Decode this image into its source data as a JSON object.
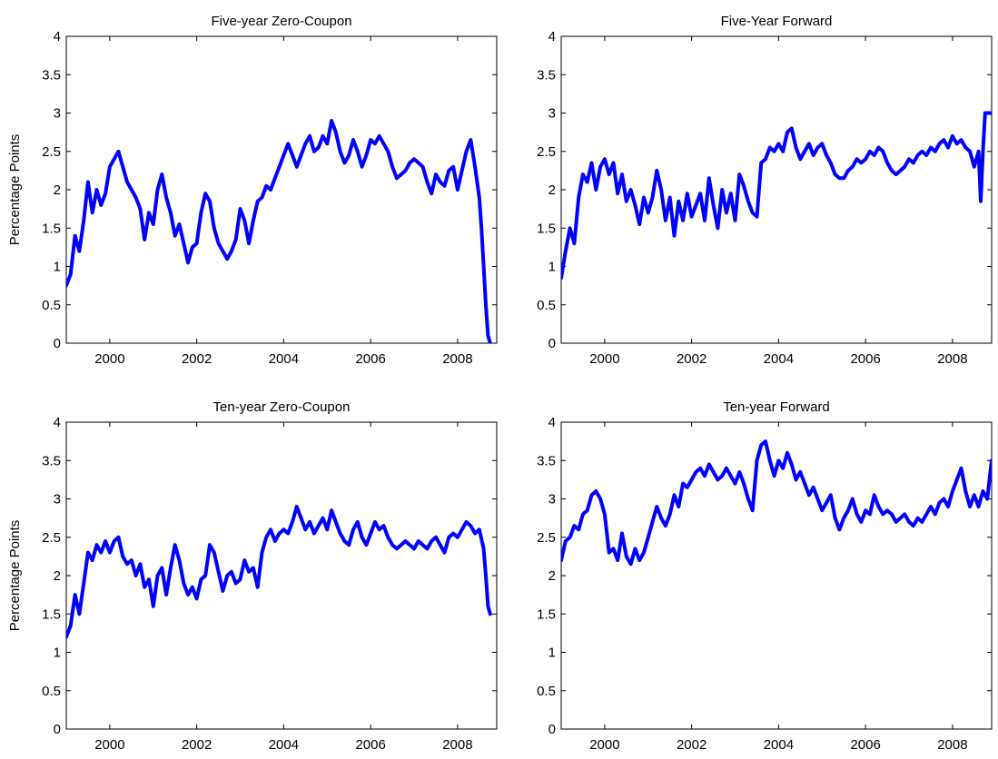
{
  "chart_data": [
    {
      "type": "line",
      "title": "Five-year Zero-Coupon",
      "xlabel": "",
      "ylabel": "Percentage Points",
      "xlim": [
        1999.0,
        2008.9
      ],
      "ylim": [
        0,
        4
      ],
      "xticks": [
        "2000",
        "2002",
        "2004",
        "2006",
        "2008"
      ],
      "yticks": [
        "0",
        "0.5",
        "1",
        "1.5",
        "2",
        "2.5",
        "3",
        "3.5",
        "4"
      ],
      "grid": false,
      "series": [
        {
          "color": "#0000ff",
          "x": [
            1999.0,
            1999.1,
            1999.2,
            1999.3,
            1999.4,
            1999.5,
            1999.6,
            1999.7,
            1999.8,
            1999.9,
            2000.0,
            2000.1,
            2000.2,
            2000.3,
            2000.4,
            2000.5,
            2000.6,
            2000.7,
            2000.8,
            2000.9,
            2001.0,
            2001.1,
            2001.2,
            2001.3,
            2001.4,
            2001.5,
            2001.6,
            2001.7,
            2001.8,
            2001.9,
            2002.0,
            2002.1,
            2002.2,
            2002.3,
            2002.4,
            2002.5,
            2002.6,
            2002.7,
            2002.8,
            2002.9,
            2003.0,
            2003.1,
            2003.2,
            2003.3,
            2003.4,
            2003.5,
            2003.6,
            2003.7,
            2003.8,
            2003.9,
            2004.0,
            2004.1,
            2004.2,
            2004.3,
            2004.4,
            2004.5,
            2004.6,
            2004.7,
            2004.8,
            2004.9,
            2005.0,
            2005.1,
            2005.2,
            2005.3,
            2005.4,
            2005.5,
            2005.6,
            2005.7,
            2005.8,
            2005.9,
            2006.0,
            2006.1,
            2006.2,
            2006.3,
            2006.4,
            2006.5,
            2006.6,
            2006.7,
            2006.8,
            2006.9,
            2007.0,
            2007.1,
            2007.2,
            2007.3,
            2007.4,
            2007.5,
            2007.6,
            2007.7,
            2007.8,
            2007.9,
            2008.0,
            2008.1,
            2008.2,
            2008.3,
            2008.4,
            2008.5,
            2008.55,
            2008.6,
            2008.65,
            2008.7,
            2008.75
          ],
          "y": [
            0.75,
            0.9,
            1.4,
            1.2,
            1.6,
            2.1,
            1.7,
            2.0,
            1.8,
            1.95,
            2.3,
            2.4,
            2.5,
            2.3,
            2.1,
            2.0,
            1.9,
            1.75,
            1.35,
            1.7,
            1.55,
            2.0,
            2.2,
            1.9,
            1.7,
            1.4,
            1.55,
            1.3,
            1.05,
            1.25,
            1.3,
            1.7,
            1.95,
            1.85,
            1.5,
            1.3,
            1.2,
            1.1,
            1.2,
            1.35,
            1.75,
            1.6,
            1.3,
            1.6,
            1.85,
            1.9,
            2.05,
            2.0,
            2.15,
            2.3,
            2.45,
            2.6,
            2.45,
            2.3,
            2.45,
            2.6,
            2.7,
            2.5,
            2.55,
            2.7,
            2.6,
            2.9,
            2.75,
            2.5,
            2.35,
            2.45,
            2.65,
            2.5,
            2.3,
            2.45,
            2.65,
            2.6,
            2.7,
            2.6,
            2.5,
            2.3,
            2.15,
            2.2,
            2.25,
            2.35,
            2.4,
            2.35,
            2.3,
            2.1,
            1.95,
            2.2,
            2.1,
            2.05,
            2.25,
            2.3,
            2.0,
            2.25,
            2.5,
            2.65,
            2.3,
            1.9,
            1.5,
            1.0,
            0.5,
            0.1,
            0.0
          ]
        }
      ]
    },
    {
      "type": "line",
      "title": "Five-Year Forward",
      "xlabel": "",
      "ylabel": "",
      "xlim": [
        1999.0,
        2008.9
      ],
      "ylim": [
        0,
        4
      ],
      "xticks": [
        "2000",
        "2002",
        "2004",
        "2006",
        "2008"
      ],
      "yticks": [
        "0",
        "0.5",
        "1",
        "1.5",
        "2",
        "2.5",
        "3",
        "3.5",
        "4"
      ],
      "grid": false,
      "series": [
        {
          "color": "#0000ff",
          "x": [
            1999.0,
            1999.1,
            1999.2,
            1999.3,
            1999.4,
            1999.5,
            1999.6,
            1999.7,
            1999.8,
            1999.9,
            2000.0,
            2000.1,
            2000.2,
            2000.3,
            2000.4,
            2000.5,
            2000.6,
            2000.7,
            2000.8,
            2000.9,
            2001.0,
            2001.1,
            2001.2,
            2001.3,
            2001.4,
            2001.5,
            2001.6,
            2001.7,
            2001.8,
            2001.9,
            2002.0,
            2002.1,
            2002.2,
            2002.3,
            2002.4,
            2002.5,
            2002.6,
            2002.7,
            2002.8,
            2002.9,
            2003.0,
            2003.1,
            2003.2,
            2003.3,
            2003.4,
            2003.5,
            2003.6,
            2003.7,
            2003.8,
            2003.9,
            2004.0,
            2004.1,
            2004.2,
            2004.3,
            2004.4,
            2004.5,
            2004.6,
            2004.7,
            2004.8,
            2004.9,
            2005.0,
            2005.1,
            2005.2,
            2005.3,
            2005.4,
            2005.5,
            2005.6,
            2005.7,
            2005.8,
            2005.9,
            2006.0,
            2006.1,
            2006.2,
            2006.3,
            2006.4,
            2006.5,
            2006.6,
            2006.7,
            2006.8,
            2006.9,
            2007.0,
            2007.1,
            2007.2,
            2007.3,
            2007.4,
            2007.5,
            2007.6,
            2007.7,
            2007.8,
            2007.9,
            2008.0,
            2008.1,
            2008.2,
            2008.3,
            2008.4,
            2008.5,
            2008.6,
            2008.65,
            2008.7,
            2008.75,
            2008.8,
            2008.85,
            2008.9
          ],
          "y": [
            0.85,
            1.2,
            1.5,
            1.3,
            1.9,
            2.2,
            2.1,
            2.35,
            2.0,
            2.3,
            2.4,
            2.2,
            2.35,
            1.95,
            2.2,
            1.85,
            2.0,
            1.8,
            1.55,
            1.9,
            1.7,
            1.9,
            2.25,
            2.0,
            1.6,
            1.9,
            1.4,
            1.85,
            1.6,
            1.95,
            1.65,
            1.8,
            1.95,
            1.6,
            2.15,
            1.8,
            1.5,
            2.0,
            1.7,
            1.95,
            1.6,
            2.2,
            2.05,
            1.85,
            1.7,
            1.65,
            2.35,
            2.4,
            2.55,
            2.5,
            2.6,
            2.5,
            2.75,
            2.8,
            2.55,
            2.4,
            2.5,
            2.6,
            2.45,
            2.55,
            2.6,
            2.45,
            2.35,
            2.2,
            2.15,
            2.15,
            2.25,
            2.3,
            2.4,
            2.35,
            2.4,
            2.5,
            2.45,
            2.55,
            2.5,
            2.35,
            2.25,
            2.2,
            2.25,
            2.3,
            2.4,
            2.35,
            2.45,
            2.5,
            2.45,
            2.55,
            2.5,
            2.6,
            2.65,
            2.55,
            2.7,
            2.6,
            2.65,
            2.55,
            2.5,
            2.3,
            2.5,
            1.85,
            2.5,
            3.0,
            3.0,
            3.0,
            3.0
          ]
        }
      ]
    },
    {
      "type": "line",
      "title": "Ten-year Zero-Coupon",
      "xlabel": "",
      "ylabel": "Percentage Points",
      "xlim": [
        1999.0,
        2008.9
      ],
      "ylim": [
        0,
        4
      ],
      "xticks": [
        "2000",
        "2002",
        "2004",
        "2006",
        "2008"
      ],
      "yticks": [
        "0",
        "0.5",
        "1",
        "1.5",
        "2",
        "2.5",
        "3",
        "3.5",
        "4"
      ],
      "grid": false,
      "series": [
        {
          "color": "#0000ff",
          "x": [
            1999.0,
            1999.1,
            1999.2,
            1999.3,
            1999.4,
            1999.5,
            1999.6,
            1999.7,
            1999.8,
            1999.9,
            2000.0,
            2000.1,
            2000.2,
            2000.3,
            2000.4,
            2000.5,
            2000.6,
            2000.7,
            2000.8,
            2000.9,
            2001.0,
            2001.1,
            2001.2,
            2001.3,
            2001.4,
            2001.5,
            2001.6,
            2001.7,
            2001.8,
            2001.9,
            2002.0,
            2002.1,
            2002.2,
            2002.3,
            2002.4,
            2002.5,
            2002.6,
            2002.7,
            2002.8,
            2002.9,
            2003.0,
            2003.1,
            2003.2,
            2003.3,
            2003.4,
            2003.5,
            2003.6,
            2003.7,
            2003.8,
            2003.9,
            2004.0,
            2004.1,
            2004.2,
            2004.3,
            2004.4,
            2004.5,
            2004.6,
            2004.7,
            2004.8,
            2004.9,
            2005.0,
            2005.1,
            2005.2,
            2005.3,
            2005.4,
            2005.5,
            2005.6,
            2005.7,
            2005.8,
            2005.9,
            2006.0,
            2006.1,
            2006.2,
            2006.3,
            2006.4,
            2006.5,
            2006.6,
            2006.7,
            2006.8,
            2006.9,
            2007.0,
            2007.1,
            2007.2,
            2007.3,
            2007.4,
            2007.5,
            2007.6,
            2007.7,
            2007.8,
            2007.9,
            2008.0,
            2008.1,
            2008.2,
            2008.3,
            2008.4,
            2008.5,
            2008.6,
            2008.65,
            2008.7,
            2008.75
          ],
          "y": [
            1.2,
            1.35,
            1.75,
            1.5,
            1.9,
            2.3,
            2.2,
            2.4,
            2.3,
            2.45,
            2.3,
            2.45,
            2.5,
            2.25,
            2.15,
            2.2,
            2.0,
            2.15,
            1.85,
            1.95,
            1.6,
            2.0,
            2.1,
            1.75,
            2.1,
            2.4,
            2.2,
            1.9,
            1.75,
            1.85,
            1.7,
            1.95,
            2.0,
            2.4,
            2.3,
            2.05,
            1.8,
            2.0,
            2.05,
            1.9,
            1.95,
            2.2,
            2.05,
            2.1,
            1.85,
            2.3,
            2.5,
            2.6,
            2.45,
            2.55,
            2.6,
            2.55,
            2.7,
            2.9,
            2.75,
            2.6,
            2.7,
            2.55,
            2.65,
            2.75,
            2.6,
            2.85,
            2.7,
            2.55,
            2.45,
            2.4,
            2.6,
            2.7,
            2.5,
            2.4,
            2.55,
            2.7,
            2.6,
            2.65,
            2.5,
            2.4,
            2.35,
            2.4,
            2.45,
            2.4,
            2.35,
            2.45,
            2.4,
            2.35,
            2.45,
            2.5,
            2.4,
            2.3,
            2.5,
            2.55,
            2.5,
            2.6,
            2.7,
            2.65,
            2.55,
            2.6,
            2.35,
            2.0,
            1.6,
            1.5
          ]
        }
      ]
    },
    {
      "type": "line",
      "title": "Ten-year Forward",
      "xlabel": "",
      "ylabel": "",
      "xlim": [
        1999.0,
        2008.9
      ],
      "ylim": [
        0,
        4
      ],
      "xticks": [
        "2000",
        "2002",
        "2004",
        "2006",
        "2008"
      ],
      "yticks": [
        "0",
        "0.5",
        "1",
        "1.5",
        "2",
        "2.5",
        "3",
        "3.5",
        "4"
      ],
      "grid": false,
      "series": [
        {
          "color": "#0000ff",
          "x": [
            1999.0,
            1999.1,
            1999.2,
            1999.3,
            1999.4,
            1999.5,
            1999.6,
            1999.7,
            1999.8,
            1999.9,
            2000.0,
            2000.1,
            2000.2,
            2000.3,
            2000.4,
            2000.5,
            2000.6,
            2000.7,
            2000.8,
            2000.9,
            2001.0,
            2001.1,
            2001.2,
            2001.3,
            2001.4,
            2001.5,
            2001.6,
            2001.7,
            2001.8,
            2001.9,
            2002.0,
            2002.1,
            2002.2,
            2002.3,
            2002.4,
            2002.5,
            2002.6,
            2002.7,
            2002.8,
            2002.9,
            2003.0,
            2003.1,
            2003.2,
            2003.3,
            2003.4,
            2003.5,
            2003.6,
            2003.7,
            2003.8,
            2003.9,
            2004.0,
            2004.1,
            2004.2,
            2004.3,
            2004.4,
            2004.5,
            2004.6,
            2004.7,
            2004.8,
            2004.9,
            2005.0,
            2005.1,
            2005.2,
            2005.3,
            2005.4,
            2005.5,
            2005.6,
            2005.7,
            2005.8,
            2005.9,
            2006.0,
            2006.1,
            2006.2,
            2006.3,
            2006.4,
            2006.5,
            2006.6,
            2006.7,
            2006.8,
            2006.9,
            2007.0,
            2007.1,
            2007.2,
            2007.3,
            2007.4,
            2007.5,
            2007.6,
            2007.7,
            2007.8,
            2007.9,
            2008.0,
            2008.1,
            2008.2,
            2008.3,
            2008.4,
            2008.5,
            2008.6,
            2008.7,
            2008.8,
            2008.9
          ],
          "y": [
            2.2,
            2.45,
            2.5,
            2.65,
            2.6,
            2.8,
            2.85,
            3.05,
            3.1,
            3.0,
            2.8,
            2.3,
            2.35,
            2.2,
            2.55,
            2.25,
            2.15,
            2.35,
            2.2,
            2.3,
            2.5,
            2.7,
            2.9,
            2.75,
            2.65,
            2.8,
            3.05,
            2.9,
            3.2,
            3.15,
            3.25,
            3.35,
            3.4,
            3.3,
            3.45,
            3.35,
            3.25,
            3.3,
            3.4,
            3.3,
            3.2,
            3.35,
            3.2,
            3.0,
            2.85,
            3.5,
            3.7,
            3.75,
            3.5,
            3.3,
            3.5,
            3.4,
            3.6,
            3.45,
            3.25,
            3.35,
            3.2,
            3.05,
            3.15,
            3.0,
            2.85,
            2.95,
            3.05,
            2.75,
            2.6,
            2.75,
            2.85,
            3.0,
            2.8,
            2.7,
            2.85,
            2.8,
            3.05,
            2.9,
            2.8,
            2.85,
            2.8,
            2.7,
            2.75,
            2.8,
            2.7,
            2.65,
            2.75,
            2.7,
            2.8,
            2.9,
            2.8,
            2.95,
            3.0,
            2.9,
            3.1,
            3.25,
            3.4,
            3.1,
            2.9,
            3.05,
            2.9,
            3.1,
            3.0,
            3.5
          ]
        }
      ]
    }
  ]
}
